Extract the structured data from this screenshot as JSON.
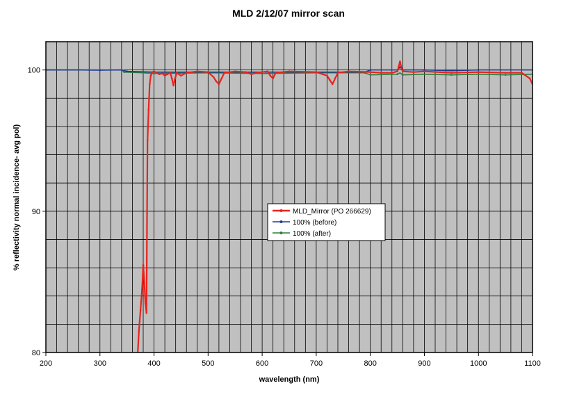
{
  "chart_data": {
    "type": "line",
    "title": "MLD 2/12/07 mirror scan",
    "xlabel": "wavelength (nm)",
    "ylabel": "% reflectivity  normal incidence- avg pol)",
    "xlim": [
      200,
      1100
    ],
    "ylim": [
      80,
      102
    ],
    "x_ticks": [
      200,
      300,
      400,
      500,
      600,
      700,
      800,
      900,
      1000,
      1100
    ],
    "x_tick_labels": [
      "200",
      "300",
      "400",
      "500",
      "600",
      "700",
      "800",
      "900",
      "1000",
      "1100"
    ],
    "y_ticks": [
      80,
      90,
      100
    ],
    "y_tick_labels": [
      "80",
      "90",
      "100"
    ],
    "grid": true,
    "legend_position": "center",
    "plot_background": "#c0c0c0",
    "series": [
      {
        "name": "MLD_Mirror (PO 266629)",
        "color": "#e8231d",
        "points": [
          [
            370,
            80
          ],
          [
            372,
            81.5
          ],
          [
            375,
            83
          ],
          [
            378,
            84.5
          ],
          [
            380,
            86.2
          ],
          [
            382,
            85
          ],
          [
            384,
            83.5
          ],
          [
            386,
            82.8
          ],
          [
            388,
            95
          ],
          [
            390,
            97.2
          ],
          [
            392,
            99.0
          ],
          [
            394,
            99.6
          ],
          [
            397,
            99.85
          ],
          [
            400,
            99.9
          ],
          [
            405,
            99.8
          ],
          [
            410,
            99.7
          ],
          [
            415,
            99.75
          ],
          [
            420,
            99.6
          ],
          [
            425,
            99.7
          ],
          [
            430,
            99.8
          ],
          [
            433,
            99.4
          ],
          [
            436,
            98.9
          ],
          [
            439,
            99.4
          ],
          [
            442,
            99.8
          ],
          [
            450,
            99.6
          ],
          [
            460,
            99.8
          ],
          [
            480,
            99.9
          ],
          [
            500,
            99.85
          ],
          [
            510,
            99.5
          ],
          [
            515,
            99.2
          ],
          [
            520,
            99.0
          ],
          [
            525,
            99.4
          ],
          [
            530,
            99.8
          ],
          [
            550,
            99.9
          ],
          [
            570,
            99.85
          ],
          [
            580,
            99.7
          ],
          [
            590,
            99.8
          ],
          [
            610,
            99.9
          ],
          [
            615,
            99.6
          ],
          [
            620,
            99.4
          ],
          [
            625,
            99.8
          ],
          [
            650,
            99.9
          ],
          [
            700,
            99.85
          ],
          [
            720,
            99.6
          ],
          [
            725,
            99.3
          ],
          [
            730,
            99.0
          ],
          [
            735,
            99.4
          ],
          [
            740,
            99.8
          ],
          [
            760,
            99.9
          ],
          [
            800,
            99.85
          ],
          [
            820,
            99.8
          ],
          [
            840,
            99.8
          ],
          [
            850,
            99.9
          ],
          [
            855,
            100.6
          ],
          [
            858,
            100.1
          ],
          [
            860,
            99.9
          ],
          [
            880,
            99.85
          ],
          [
            900,
            99.9
          ],
          [
            950,
            99.8
          ],
          [
            1000,
            99.85
          ],
          [
            1050,
            99.8
          ],
          [
            1080,
            99.8
          ],
          [
            1095,
            99.4
          ],
          [
            1100,
            99.0
          ]
        ]
      },
      {
        "name": "100% (before)",
        "color": "#1f3a93",
        "points": [
          [
            200,
            100
          ],
          [
            260,
            100
          ],
          [
            300,
            99.98
          ],
          [
            340,
            100
          ],
          [
            350,
            99.9
          ],
          [
            400,
            99.85
          ],
          [
            500,
            99.85
          ],
          [
            600,
            99.85
          ],
          [
            700,
            99.85
          ],
          [
            790,
            99.85
          ],
          [
            800,
            100.0
          ],
          [
            850,
            100.0
          ],
          [
            855,
            100.2
          ],
          [
            860,
            100.0
          ],
          [
            900,
            100.0
          ],
          [
            950,
            99.95
          ],
          [
            1000,
            100.0
          ],
          [
            1050,
            100.0
          ],
          [
            1100,
            100.0
          ]
        ]
      },
      {
        "name": "100% (after)",
        "color": "#2e7d3a",
        "points": [
          [
            200,
            100
          ],
          [
            250,
            100
          ],
          [
            300,
            100
          ],
          [
            340,
            100
          ],
          [
            345,
            99.85
          ],
          [
            380,
            99.8
          ],
          [
            400,
            99.75
          ],
          [
            500,
            99.8
          ],
          [
            600,
            99.75
          ],
          [
            700,
            99.8
          ],
          [
            790,
            99.8
          ],
          [
            800,
            99.65
          ],
          [
            850,
            99.7
          ],
          [
            855,
            99.8
          ],
          [
            860,
            99.65
          ],
          [
            900,
            99.7
          ],
          [
            950,
            99.65
          ],
          [
            1000,
            99.7
          ],
          [
            1050,
            99.65
          ],
          [
            1100,
            99.7
          ]
        ]
      }
    ]
  }
}
